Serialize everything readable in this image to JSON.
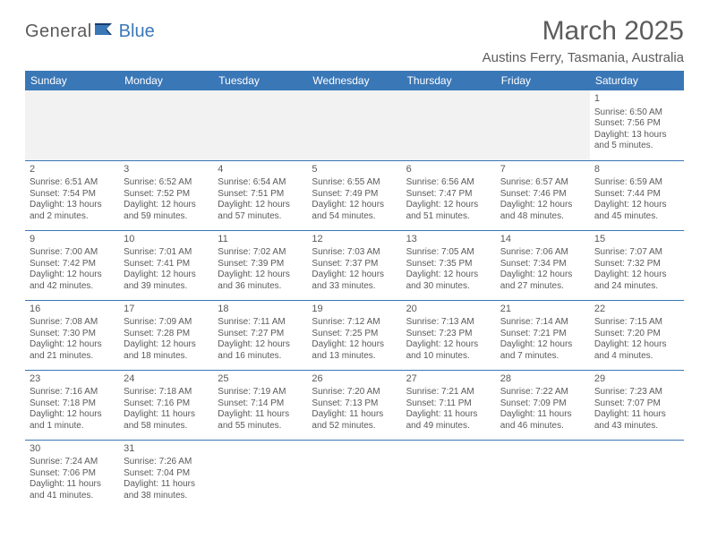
{
  "logo": {
    "text1": "General",
    "text2": "Blue",
    "flagColor": "#3a77b7"
  },
  "title": "March 2025",
  "location": "Austins Ferry, Tasmania, Australia",
  "colors": {
    "headerBg": "#3a77b7",
    "headerText": "#ffffff",
    "bodyText": "#5a5a5a",
    "blankBg": "#f2f2f2",
    "border": "#3a77b7"
  },
  "dayHeaders": [
    "Sunday",
    "Monday",
    "Tuesday",
    "Wednesday",
    "Thursday",
    "Friday",
    "Saturday"
  ],
  "weeks": [
    [
      {
        "blank": true
      },
      {
        "blank": true
      },
      {
        "blank": true
      },
      {
        "blank": true
      },
      {
        "blank": true
      },
      {
        "blank": true
      },
      {
        "day": "1",
        "sunrise": "Sunrise: 6:50 AM",
        "sunset": "Sunset: 7:56 PM",
        "daylight": "Daylight: 13 hours and 5 minutes."
      }
    ],
    [
      {
        "day": "2",
        "sunrise": "Sunrise: 6:51 AM",
        "sunset": "Sunset: 7:54 PM",
        "daylight": "Daylight: 13 hours and 2 minutes."
      },
      {
        "day": "3",
        "sunrise": "Sunrise: 6:52 AM",
        "sunset": "Sunset: 7:52 PM",
        "daylight": "Daylight: 12 hours and 59 minutes."
      },
      {
        "day": "4",
        "sunrise": "Sunrise: 6:54 AM",
        "sunset": "Sunset: 7:51 PM",
        "daylight": "Daylight: 12 hours and 57 minutes."
      },
      {
        "day": "5",
        "sunrise": "Sunrise: 6:55 AM",
        "sunset": "Sunset: 7:49 PM",
        "daylight": "Daylight: 12 hours and 54 minutes."
      },
      {
        "day": "6",
        "sunrise": "Sunrise: 6:56 AM",
        "sunset": "Sunset: 7:47 PM",
        "daylight": "Daylight: 12 hours and 51 minutes."
      },
      {
        "day": "7",
        "sunrise": "Sunrise: 6:57 AM",
        "sunset": "Sunset: 7:46 PM",
        "daylight": "Daylight: 12 hours and 48 minutes."
      },
      {
        "day": "8",
        "sunrise": "Sunrise: 6:59 AM",
        "sunset": "Sunset: 7:44 PM",
        "daylight": "Daylight: 12 hours and 45 minutes."
      }
    ],
    [
      {
        "day": "9",
        "sunrise": "Sunrise: 7:00 AM",
        "sunset": "Sunset: 7:42 PM",
        "daylight": "Daylight: 12 hours and 42 minutes."
      },
      {
        "day": "10",
        "sunrise": "Sunrise: 7:01 AM",
        "sunset": "Sunset: 7:41 PM",
        "daylight": "Daylight: 12 hours and 39 minutes."
      },
      {
        "day": "11",
        "sunrise": "Sunrise: 7:02 AM",
        "sunset": "Sunset: 7:39 PM",
        "daylight": "Daylight: 12 hours and 36 minutes."
      },
      {
        "day": "12",
        "sunrise": "Sunrise: 7:03 AM",
        "sunset": "Sunset: 7:37 PM",
        "daylight": "Daylight: 12 hours and 33 minutes."
      },
      {
        "day": "13",
        "sunrise": "Sunrise: 7:05 AM",
        "sunset": "Sunset: 7:35 PM",
        "daylight": "Daylight: 12 hours and 30 minutes."
      },
      {
        "day": "14",
        "sunrise": "Sunrise: 7:06 AM",
        "sunset": "Sunset: 7:34 PM",
        "daylight": "Daylight: 12 hours and 27 minutes."
      },
      {
        "day": "15",
        "sunrise": "Sunrise: 7:07 AM",
        "sunset": "Sunset: 7:32 PM",
        "daylight": "Daylight: 12 hours and 24 minutes."
      }
    ],
    [
      {
        "day": "16",
        "sunrise": "Sunrise: 7:08 AM",
        "sunset": "Sunset: 7:30 PM",
        "daylight": "Daylight: 12 hours and 21 minutes."
      },
      {
        "day": "17",
        "sunrise": "Sunrise: 7:09 AM",
        "sunset": "Sunset: 7:28 PM",
        "daylight": "Daylight: 12 hours and 18 minutes."
      },
      {
        "day": "18",
        "sunrise": "Sunrise: 7:11 AM",
        "sunset": "Sunset: 7:27 PM",
        "daylight": "Daylight: 12 hours and 16 minutes."
      },
      {
        "day": "19",
        "sunrise": "Sunrise: 7:12 AM",
        "sunset": "Sunset: 7:25 PM",
        "daylight": "Daylight: 12 hours and 13 minutes."
      },
      {
        "day": "20",
        "sunrise": "Sunrise: 7:13 AM",
        "sunset": "Sunset: 7:23 PM",
        "daylight": "Daylight: 12 hours and 10 minutes."
      },
      {
        "day": "21",
        "sunrise": "Sunrise: 7:14 AM",
        "sunset": "Sunset: 7:21 PM",
        "daylight": "Daylight: 12 hours and 7 minutes."
      },
      {
        "day": "22",
        "sunrise": "Sunrise: 7:15 AM",
        "sunset": "Sunset: 7:20 PM",
        "daylight": "Daylight: 12 hours and 4 minutes."
      }
    ],
    [
      {
        "day": "23",
        "sunrise": "Sunrise: 7:16 AM",
        "sunset": "Sunset: 7:18 PM",
        "daylight": "Daylight: 12 hours and 1 minute."
      },
      {
        "day": "24",
        "sunrise": "Sunrise: 7:18 AM",
        "sunset": "Sunset: 7:16 PM",
        "daylight": "Daylight: 11 hours and 58 minutes."
      },
      {
        "day": "25",
        "sunrise": "Sunrise: 7:19 AM",
        "sunset": "Sunset: 7:14 PM",
        "daylight": "Daylight: 11 hours and 55 minutes."
      },
      {
        "day": "26",
        "sunrise": "Sunrise: 7:20 AM",
        "sunset": "Sunset: 7:13 PM",
        "daylight": "Daylight: 11 hours and 52 minutes."
      },
      {
        "day": "27",
        "sunrise": "Sunrise: 7:21 AM",
        "sunset": "Sunset: 7:11 PM",
        "daylight": "Daylight: 11 hours and 49 minutes."
      },
      {
        "day": "28",
        "sunrise": "Sunrise: 7:22 AM",
        "sunset": "Sunset: 7:09 PM",
        "daylight": "Daylight: 11 hours and 46 minutes."
      },
      {
        "day": "29",
        "sunrise": "Sunrise: 7:23 AM",
        "sunset": "Sunset: 7:07 PM",
        "daylight": "Daylight: 11 hours and 43 minutes."
      }
    ],
    [
      {
        "day": "30",
        "sunrise": "Sunrise: 7:24 AM",
        "sunset": "Sunset: 7:06 PM",
        "daylight": "Daylight: 11 hours and 41 minutes."
      },
      {
        "day": "31",
        "sunrise": "Sunrise: 7:26 AM",
        "sunset": "Sunset: 7:04 PM",
        "daylight": "Daylight: 11 hours and 38 minutes."
      },
      {
        "empty": true
      },
      {
        "empty": true
      },
      {
        "empty": true
      },
      {
        "empty": true
      },
      {
        "empty": true
      }
    ]
  ]
}
